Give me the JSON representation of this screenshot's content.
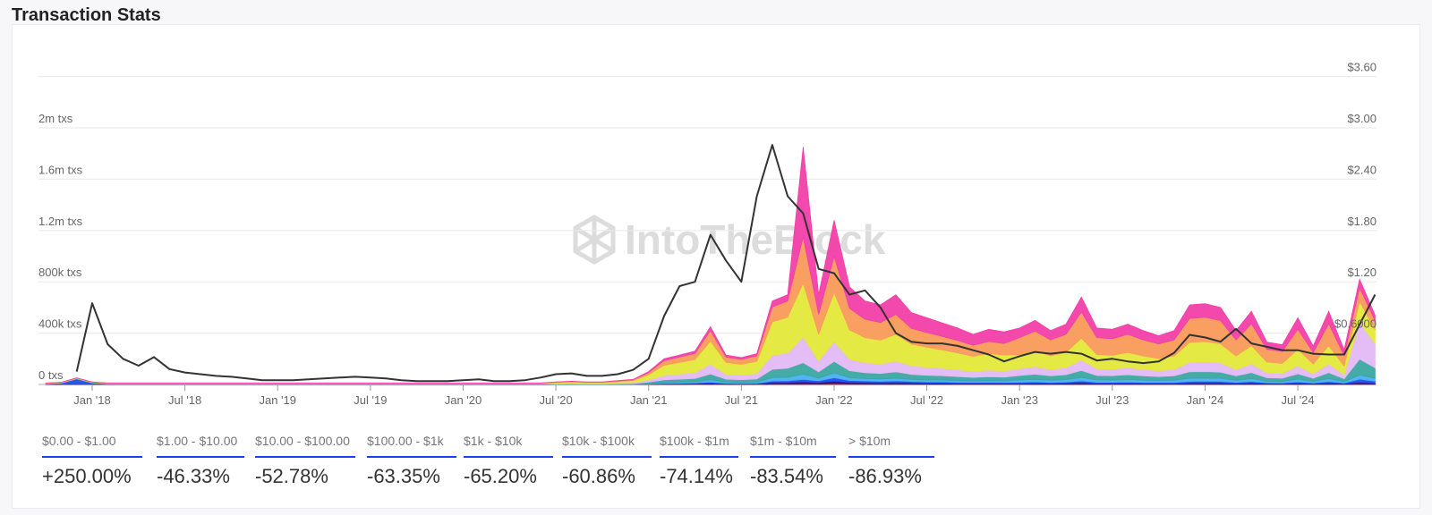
{
  "header": {
    "title": "Transaction Stats"
  },
  "watermark": "IntoTheBlock",
  "stats": [
    {
      "label": "$0.00 - $1.00",
      "value": "+250.00%"
    },
    {
      "label": "$1.00 - $10.00",
      "value": "-46.33%"
    },
    {
      "label": "$10.00 - $100.00",
      "value": "-52.78%"
    },
    {
      "label": "$100.00 - $1k",
      "value": "-63.35%"
    },
    {
      "label": "$1k - $10k",
      "value": "-65.20%"
    },
    {
      "label": "$10k - $100k",
      "value": "-60.86%"
    },
    {
      "label": "$100k - $1m",
      "value": "-74.14%"
    },
    {
      "label": "$1m - $10m",
      "value": "-83.54%"
    },
    {
      "label": "> $10m",
      "value": "-86.93%"
    }
  ],
  "chart_data": {
    "type": "area",
    "stacked": true,
    "title": "Transaction Stats",
    "x_start": "2017-10",
    "x_end": "2024-12",
    "x_step": "month",
    "x_ticks": [
      "Jan '18",
      "Jul '18",
      "Jan '19",
      "Jul '19",
      "Jan '20",
      "Jul '20",
      "Jan '21",
      "Jul '21",
      "Jan '22",
      "Jul '22",
      "Jan '23",
      "Jul '23",
      "Jan '24",
      "Jul '24"
    ],
    "y_left": {
      "unit": "thousand txs",
      "ticks": [
        "0 txs",
        "400k txs",
        "800k txs",
        "1.2m txs",
        "1.6m txs",
        "2m txs"
      ],
      "range": [
        0,
        2400
      ]
    },
    "y_right": {
      "unit": "USD",
      "ticks": [
        "$0.6000",
        "$1.20",
        "$1.80",
        "$2.40",
        "$3.00",
        "$3.60"
      ],
      "range": [
        0,
        3.6
      ]
    },
    "grid": true,
    "series": [
      {
        "name": "$0.00 - $1.00",
        "color": "#f23fa8",
        "values": [
          1,
          1,
          1,
          1,
          1,
          1,
          1,
          1,
          1,
          1,
          1,
          1,
          1,
          1,
          1,
          1,
          1,
          1,
          1,
          1,
          1,
          1,
          1,
          1,
          1,
          1,
          1,
          1,
          1,
          1,
          1,
          1,
          1,
          1.4,
          1.8,
          1.4,
          1.4,
          2.1,
          2.8,
          7,
          14,
          16,
          18,
          30,
          16,
          15,
          17,
          45,
          49,
          700,
          154,
          281,
          167,
          142,
          137,
          154,
          123,
          115,
          105,
          97,
          85,
          94,
          91,
          75,
          85,
          72,
          79,
          115,
          75,
          73,
          79,
          72,
          64,
          72,
          106,
          107,
          102,
          72,
          96,
          56,
          53,
          89,
          51,
          96,
          45,
          65,
          44
        ]
      },
      {
        "name": "$1.00 - $10.00",
        "color": "#fa9a5a",
        "values": [
          1,
          1,
          1,
          1,
          1,
          1,
          1,
          1,
          1,
          1,
          1,
          1,
          1,
          1,
          1,
          1,
          1,
          1,
          1,
          1,
          1,
          1,
          1,
          1,
          1,
          1,
          1,
          1,
          1,
          1,
          1,
          1,
          1,
          3.6,
          4.5,
          3.6,
          3.6,
          5.4,
          7.2,
          18,
          36,
          41,
          47,
          81,
          41,
          38,
          43,
          117,
          126,
          360,
          154,
          281,
          167,
          143,
          137,
          154,
          123,
          115,
          105,
          97,
          86,
          95,
          90,
          132,
          150,
          126,
          141,
          204,
          132,
          129,
          141,
          126,
          114,
          126,
          186,
          189,
          180,
          126,
          171,
          99,
          93,
          156,
          90,
          171,
          81,
          107,
          70
        ]
      },
      {
        "name": "$10.00 - $100.00",
        "color": "#e4e83a",
        "values": [
          2,
          2,
          2,
          2,
          2,
          2,
          2,
          2,
          2,
          2,
          2,
          2,
          2,
          2,
          2,
          2,
          2,
          2,
          2,
          2,
          2,
          2,
          2,
          2,
          2,
          2,
          2,
          2,
          2,
          2,
          2,
          2,
          2,
          8,
          10,
          8,
          8,
          12,
          16,
          40,
          80,
          92,
          104,
          180,
          92,
          84,
          96,
          260,
          280,
          420,
          210,
          384,
          228,
          195,
          186,
          210,
          168,
          156,
          144,
          132,
          117,
          129,
          123,
          110,
          125,
          105,
          118,
          170,
          110,
          108,
          118,
          105,
          95,
          105,
          155,
          158,
          150,
          105,
          143,
          83,
          78,
          130,
          75,
          143,
          68,
          164,
          108
        ]
      },
      {
        "name": "$100.00 - $1k",
        "color": "#e3b8f5",
        "values": [
          1,
          1,
          1,
          1,
          1,
          1,
          1,
          1,
          1,
          1,
          1,
          1,
          1,
          1,
          1,
          1,
          1,
          1,
          1,
          1,
          1,
          1,
          1,
          1,
          1,
          1,
          1,
          1,
          1,
          1,
          1,
          1,
          1,
          3.4,
          4.3,
          3.4,
          3.4,
          5.1,
          6.8,
          17,
          34,
          39,
          44,
          77,
          39,
          36,
          41,
          110,
          119,
          200,
          84,
          154,
          91,
          78,
          74,
          84,
          67,
          62,
          58,
          53,
          47,
          52,
          49,
          53,
          60,
          50,
          56,
          82,
          53,
          52,
          56,
          50,
          46,
          50,
          74,
          76,
          72,
          50,
          68,
          40,
          37,
          62,
          36,
          68,
          32,
          287,
          189
        ]
      },
      {
        "name": "$1k - $10k",
        "color": "#3aa6a0",
        "values": [
          2,
          2,
          2,
          2,
          2,
          2,
          2,
          2,
          2,
          2,
          2,
          2,
          2,
          2,
          2,
          2,
          2,
          2,
          2,
          2,
          2,
          2,
          2,
          2,
          2,
          2,
          2,
          2,
          2,
          2,
          2,
          2,
          2,
          2,
          2.5,
          2,
          2,
          3,
          4,
          10,
          20,
          23,
          26,
          45,
          23,
          21,
          24,
          65,
          70,
          90,
          49,
          90,
          53,
          45,
          43,
          49,
          39,
          36,
          34,
          31,
          27,
          30,
          29,
          35,
          40,
          34,
          38,
          54,
          35,
          34,
          38,
          34,
          30,
          34,
          50,
          50,
          48,
          34,
          46,
          26,
          25,
          42,
          24,
          46,
          22,
          123,
          81
        ]
      },
      {
        "name": "$10k - $100k",
        "color": "#49b0f2",
        "values": [
          1,
          1,
          3,
          1,
          1,
          1,
          1,
          1,
          1,
          1,
          1,
          1,
          1,
          1,
          1,
          1,
          1,
          1,
          1,
          1,
          1,
          1,
          1,
          1,
          1,
          1,
          1,
          1,
          1,
          1,
          1,
          1,
          1,
          0.8,
          1,
          0.8,
          0.8,
          1.2,
          1.6,
          4,
          8,
          9,
          10,
          18,
          9,
          8,
          10,
          26,
          28,
          40,
          21,
          38,
          23,
          20,
          19,
          21,
          17,
          16,
          14,
          13,
          12,
          13,
          12,
          18,
          20,
          17,
          19,
          27,
          18,
          17,
          19,
          17,
          15,
          17,
          25,
          25,
          24,
          17,
          23,
          13,
          12,
          21,
          12,
          23,
          11,
          33,
          22
        ]
      },
      {
        "name": "$100k - $1m",
        "color": "#1f4cf0",
        "values": [
          2,
          8,
          40,
          10,
          2,
          2,
          2,
          2,
          2,
          2,
          2,
          2,
          2,
          2,
          2,
          2,
          2,
          2,
          2,
          2,
          2,
          2,
          2,
          2,
          2,
          2,
          2,
          2,
          2,
          2,
          2,
          2,
          2,
          0.4,
          0.5,
          0.4,
          0.4,
          0.6,
          0.8,
          2,
          4,
          5,
          5,
          9,
          5,
          4,
          5,
          13,
          14,
          20,
          14,
          26,
          15,
          13,
          12,
          14,
          11,
          10,
          10,
          9,
          8,
          9,
          8,
          9,
          10,
          8,
          9,
          14,
          9,
          9,
          9,
          8,
          8,
          8,
          12,
          13,
          12,
          8,
          11,
          7,
          6,
          10,
          6,
          11,
          5,
          25,
          16
        ]
      },
      {
        "name": "$1m - $10m",
        "color": "#3b0a6b",
        "values": [
          1,
          1,
          1,
          1,
          1,
          1,
          1,
          1,
          1,
          1,
          1,
          1,
          1,
          1,
          1,
          1,
          1,
          1,
          1,
          1,
          1,
          1,
          1,
          1,
          1,
          1,
          1,
          1,
          1,
          1,
          1,
          1,
          1,
          0.2,
          0.3,
          0.2,
          0.2,
          0.3,
          0.4,
          1,
          2,
          2,
          3,
          5,
          2,
          2,
          2,
          7,
          7,
          10,
          7,
          13,
          8,
          7,
          6,
          7,
          6,
          5,
          5,
          4,
          4,
          4,
          4,
          4,
          5,
          4,
          5,
          7,
          4,
          4,
          5,
          4,
          4,
          4,
          6,
          6,
          6,
          4,
          6,
          3,
          3,
          5,
          3,
          6,
          3,
          8,
          5
        ]
      },
      {
        "name": "> $10m",
        "color": "#8b1a3a",
        "values": [
          0.5,
          0.5,
          0.5,
          0.5,
          0.5,
          0.5,
          0.5,
          0.5,
          0.5,
          0.5,
          0.5,
          0.5,
          0.5,
          0.5,
          0.5,
          0.5,
          0.5,
          0.5,
          0.5,
          0.5,
          0.5,
          0.5,
          0.5,
          0.5,
          0.5,
          0.5,
          0.5,
          0.5,
          0.5,
          0.5,
          0.5,
          0.5,
          0.5,
          0.2,
          0.3,
          0.2,
          0.2,
          0.3,
          0.4,
          1,
          2,
          2,
          3,
          5,
          2,
          2,
          2,
          7,
          7,
          10,
          7,
          13,
          8,
          7,
          6,
          7,
          6,
          5,
          5,
          4,
          4,
          4,
          4,
          4,
          5,
          4,
          5,
          7,
          4,
          4,
          5,
          4,
          4,
          4,
          6,
          6,
          6,
          4,
          6,
          3,
          3,
          5,
          3,
          6,
          3,
          8,
          5
        ]
      }
    ],
    "price": {
      "name": "Price",
      "color": "#333333",
      "axis": "right",
      "values": [
        null,
        null,
        0.15,
        0.95,
        0.47,
        0.3,
        0.22,
        0.32,
        0.18,
        0.14,
        0.12,
        0.1,
        0.09,
        0.07,
        0.05,
        0.05,
        0.05,
        0.06,
        0.07,
        0.08,
        0.09,
        0.08,
        0.07,
        0.05,
        0.04,
        0.04,
        0.04,
        0.05,
        0.06,
        0.04,
        0.04,
        0.05,
        0.08,
        0.12,
        0.13,
        0.1,
        0.1,
        0.12,
        0.17,
        0.3,
        0.8,
        1.15,
        1.2,
        1.75,
        1.45,
        1.2,
        2.2,
        2.8,
        2.2,
        2.0,
        1.35,
        1.3,
        1.05,
        1.1,
        0.9,
        0.6,
        0.5,
        0.48,
        0.48,
        0.45,
        0.4,
        0.35,
        0.27,
        0.33,
        0.38,
        0.36,
        0.38,
        0.36,
        0.28,
        0.3,
        0.27,
        0.25,
        0.27,
        0.37,
        0.58,
        0.55,
        0.5,
        0.65,
        0.48,
        0.44,
        0.4,
        0.4,
        0.36,
        0.35,
        0.35,
        0.7,
        1.05
      ]
    }
  }
}
